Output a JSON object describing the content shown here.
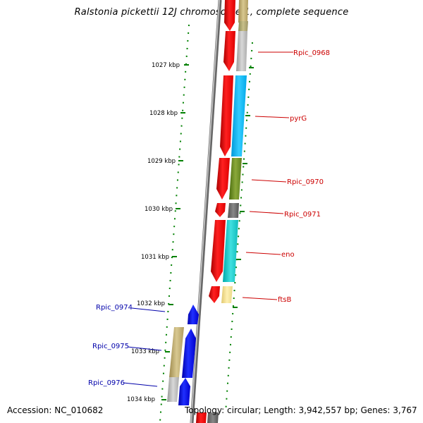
{
  "title": "Ralstonia pickettii 12J chromosome 1, complete sequence",
  "footer": {
    "accession": "Accession: NC_010682",
    "summary": "Topology: circular; Length: 3,942,557 bp; Genes: 3,767"
  },
  "scale": {
    "labels": [
      {
        "id": "1027",
        "text": "1027 kbp"
      },
      {
        "id": "1028",
        "text": "1028 kbp"
      },
      {
        "id": "1029",
        "text": "1029 kbp"
      },
      {
        "id": "1030",
        "text": "1030 kbp"
      },
      {
        "id": "1031",
        "text": "1031 kbp"
      },
      {
        "id": "1032",
        "text": "1032 kbp"
      },
      {
        "id": "1033",
        "text": "1033 kbp"
      },
      {
        "id": "1034",
        "text": "1034 kbp"
      }
    ]
  },
  "genes": [
    {
      "id": "rpic-0968",
      "name": "Rpic_0968",
      "strand": "forward",
      "color": "#cc0000"
    },
    {
      "id": "pyrg",
      "name": "pyrG",
      "strand": "forward",
      "color": "#cc0000"
    },
    {
      "id": "rpic-0970",
      "name": "Rpic_0970",
      "strand": "forward",
      "color": "#cc0000"
    },
    {
      "id": "rpic-0971",
      "name": "Rpic_0971",
      "strand": "forward",
      "color": "#cc0000"
    },
    {
      "id": "eno",
      "name": "eno",
      "strand": "forward",
      "color": "#cc0000"
    },
    {
      "id": "ftsb",
      "name": "ftsB",
      "strand": "forward",
      "color": "#cc0000"
    },
    {
      "id": "rpic-0974",
      "name": "Rpic_0974",
      "strand": "reverse",
      "color": "#0000aa"
    },
    {
      "id": "rpic-0975",
      "name": "Rpic_0975",
      "strand": "reverse",
      "color": "#0000aa"
    },
    {
      "id": "rpic-0976",
      "name": "Rpic_0976",
      "strand": "reverse",
      "color": "#0000aa"
    }
  ],
  "colors": {
    "forward_strand": "#ff0000",
    "reverse_strand": "#0000ff",
    "backbone": "#888888",
    "scale_dots": "#008000"
  }
}
